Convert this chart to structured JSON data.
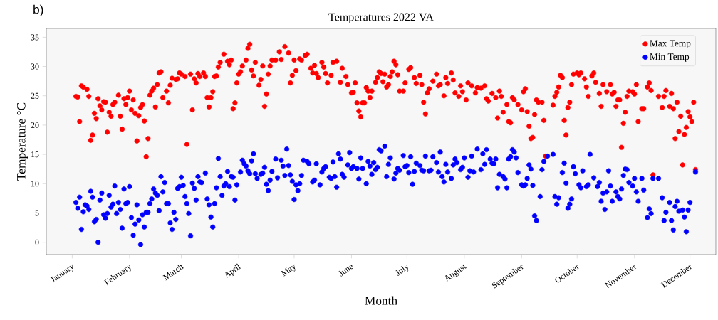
{
  "chart_data": {
    "type": "scatter",
    "title": "Temperatures 2022 VA",
    "xlabel": "Month",
    "ylabel": "Temperature °C",
    "annotations": [
      "b)"
    ],
    "xlim": [
      "2021-12-18",
      "2022-12-15"
    ],
    "ylim": [
      -2.1,
      36.5
    ],
    "xticks": [
      {
        "value": "2022-01-01",
        "label": "January"
      },
      {
        "value": "2022-02-01",
        "label": "February"
      },
      {
        "value": "2022-03-01",
        "label": "March"
      },
      {
        "value": "2022-04-01",
        "label": "April"
      },
      {
        "value": "2022-05-01",
        "label": "May"
      },
      {
        "value": "2022-06-01",
        "label": "June"
      },
      {
        "value": "2022-07-01",
        "label": "July"
      },
      {
        "value": "2022-08-01",
        "label": "August"
      },
      {
        "value": "2022-09-01",
        "label": "September"
      },
      {
        "value": "2022-10-01",
        "label": "October"
      },
      {
        "value": "2022-11-01",
        "label": "November"
      },
      {
        "value": "2022-12-01",
        "label": "December"
      }
    ],
    "yticks": [
      0,
      5,
      10,
      15,
      20,
      25,
      30,
      35
    ],
    "legend": "top right",
    "marker": "circle",
    "grid": false,
    "series": [
      {
        "name": "Max Temp",
        "color": "#ff0000",
        "x": [
          "2022-01-03",
          "2022-01-04",
          "2022-01-05",
          "2022-01-06",
          "2022-01-07",
          "2022-01-09",
          "2022-01-10",
          "2022-01-11",
          "2022-01-12",
          "2022-01-13",
          "2022-01-14",
          "2022-01-15",
          "2022-01-16",
          "2022-01-17",
          "2022-01-18",
          "2022-01-19",
          "2022-01-20",
          "2022-01-21",
          "2022-01-22",
          "2022-01-23",
          "2022-01-24",
          "2022-01-26",
          "2022-01-27",
          "2022-01-28",
          "2022-01-29",
          "2022-01-30",
          "2022-01-31",
          "2022-02-01",
          "2022-02-02",
          "2022-02-03",
          "2022-02-04",
          "2022-02-05",
          "2022-02-06",
          "2022-02-07",
          "2022-02-08",
          "2022-02-09",
          "2022-02-10",
          "2022-02-11",
          "2022-02-12",
          "2022-02-13",
          "2022-02-14",
          "2022-02-15",
          "2022-02-16",
          "2022-02-17",
          "2022-02-18",
          "2022-02-19",
          "2022-02-21",
          "2022-02-22",
          "2022-02-23",
          "2022-02-24",
          "2022-02-26",
          "2022-02-27",
          "2022-02-28",
          "2022-03-01",
          "2022-03-03",
          "2022-03-04",
          "2022-03-06",
          "2022-03-07",
          "2022-03-08",
          "2022-03-09",
          "2022-03-10",
          "2022-03-11",
          "2022-03-13",
          "2022-03-14",
          "2022-03-15",
          "2022-03-16",
          "2022-03-17",
          "2022-03-18",
          "2022-03-19",
          "2022-03-20",
          "2022-03-21",
          "2022-03-22",
          "2022-03-24",
          "2022-03-26",
          "2022-03-27",
          "2022-03-28",
          "2022-03-29",
          "2022-03-30",
          "2022-03-31",
          "2022-04-01",
          "2022-04-02",
          "2022-04-03",
          "2022-04-05",
          "2022-04-06",
          "2022-04-07",
          "2022-04-08",
          "2022-04-09",
          "2022-04-10",
          "2022-04-12",
          "2022-04-13",
          "2022-04-14",
          "2022-04-15",
          "2022-04-16",
          "2022-04-17",
          "2022-04-18",
          "2022-04-19",
          "2022-04-21",
          "2022-04-23",
          "2022-04-24",
          "2022-04-26",
          "2022-04-28",
          "2022-04-29",
          "2022-04-30",
          "2022-05-01",
          "2022-05-02",
          "2022-05-04",
          "2022-05-05",
          "2022-05-07",
          "2022-05-08",
          "2022-05-10",
          "2022-05-11",
          "2022-05-12",
          "2022-05-13",
          "2022-05-14",
          "2022-05-16",
          "2022-05-17",
          "2022-05-18",
          "2022-05-19",
          "2022-05-21",
          "2022-05-22",
          "2022-05-24",
          "2022-05-26",
          "2022-05-27",
          "2022-05-29",
          "2022-05-30",
          "2022-06-01",
          "2022-06-02",
          "2022-06-03",
          "2022-06-04",
          "2022-06-05",
          "2022-06-06",
          "2022-06-07",
          "2022-06-08",
          "2022-06-09",
          "2022-06-10",
          "2022-06-11",
          "2022-06-12",
          "2022-06-14",
          "2022-06-15",
          "2022-06-16",
          "2022-06-17",
          "2022-06-18",
          "2022-06-19",
          "2022-06-20",
          "2022-06-21",
          "2022-06-22",
          "2022-06-23",
          "2022-06-24",
          "2022-06-25",
          "2022-06-26",
          "2022-06-27",
          "2022-06-29",
          "2022-06-30",
          "2022-07-02",
          "2022-07-03",
          "2022-07-05",
          "2022-07-06",
          "2022-07-08",
          "2022-07-09",
          "2022-07-10",
          "2022-07-11",
          "2022-07-12",
          "2022-07-13",
          "2022-07-15",
          "2022-07-17",
          "2022-07-18",
          "2022-07-19",
          "2022-07-21",
          "2022-07-22",
          "2022-07-23",
          "2022-07-25",
          "2022-07-26",
          "2022-07-27",
          "2022-07-29",
          "2022-07-30",
          "2022-07-31",
          "2022-08-02",
          "2022-08-03",
          "2022-08-05",
          "2022-08-07",
          "2022-08-08",
          "2022-08-10",
          "2022-08-12",
          "2022-08-13",
          "2022-08-14",
          "2022-08-16",
          "2022-08-18",
          "2022-08-19",
          "2022-08-20",
          "2022-08-21",
          "2022-08-22",
          "2022-08-24",
          "2022-08-25",
          "2022-08-26",
          "2022-08-27",
          "2022-08-28",
          "2022-08-30",
          "2022-09-01",
          "2022-09-02",
          "2022-09-03",
          "2022-09-04",
          "2022-09-05",
          "2022-09-06",
          "2022-09-07",
          "2022-09-08",
          "2022-09-09",
          "2022-09-10",
          "2022-09-12",
          "2022-09-13",
          "2022-09-14",
          "2022-09-18",
          "2022-09-19",
          "2022-09-20",
          "2022-09-21",
          "2022-09-22",
          "2022-09-23",
          "2022-09-24",
          "2022-09-25",
          "2022-09-26",
          "2022-09-27",
          "2022-09-28",
          "2022-09-29",
          "2022-10-01",
          "2022-10-02",
          "2022-10-03",
          "2022-10-05",
          "2022-10-06",
          "2022-10-07",
          "2022-10-09",
          "2022-10-10",
          "2022-10-11",
          "2022-10-13",
          "2022-10-14",
          "2022-10-15",
          "2022-10-17",
          "2022-10-19",
          "2022-10-20",
          "2022-10-21",
          "2022-10-22",
          "2022-10-23",
          "2022-10-24",
          "2022-10-25",
          "2022-10-26",
          "2022-10-27",
          "2022-10-28",
          "2022-10-29",
          "2022-10-31",
          "2022-11-01",
          "2022-11-02",
          "2022-11-03",
          "2022-11-05",
          "2022-11-06",
          "2022-11-08",
          "2022-11-09",
          "2022-11-10",
          "2022-11-11",
          "2022-11-14",
          "2022-11-16",
          "2022-11-17",
          "2022-11-18",
          "2022-11-20",
          "2022-11-21",
          "2022-11-22",
          "2022-11-23",
          "2022-11-24",
          "2022-11-25",
          "2022-11-26",
          "2022-11-27",
          "2022-11-28",
          "2022-11-29",
          "2022-11-30",
          "2022-12-01",
          "2022-12-02",
          "2022-12-03",
          "2022-12-04"
        ],
        "values": [
          24.9,
          24.8,
          20.6,
          26.7,
          26.5,
          26.1,
          24.9,
          17.4,
          18.3,
          22.0,
          21.1,
          24.5,
          23.3,
          22.6,
          24.0,
          23.9,
          18.8,
          22.2,
          21.5,
          23.5,
          23.9,
          25.1,
          21.5,
          19.3,
          24.5,
          23.5,
          24.7,
          25.8,
          22.6,
          24.3,
          22.0,
          17.3,
          21.6,
          23.0,
          23.5,
          20.7,
          14.6,
          17.7,
          25.1,
          25.8,
          26.3,
          23.1,
          26.9,
          28.9,
          29.1,
          24.7,
          25.8,
          23.8,
          26.8,
          28.0,
          27.8,
          27.9,
          28.9,
          28.7,
          28.3,
          16.7,
          28.7,
          22.6,
          27.9,
          27.2,
          28.8,
          28.3,
          28.9,
          28.3,
          24.7,
          23.1,
          24.7,
          25.7,
          28.3,
          28.4,
          29.9,
          30.7,
          32.1,
          30.9,
          30.3,
          31.1,
          22.8,
          23.8,
          27.2,
          28.7,
          29.1,
          30.1,
          31.1,
          33.1,
          33.8,
          29.4,
          28.4,
          30.7,
          26.8,
          27.8,
          30.1,
          23.2,
          25.3,
          28.7,
          30.1,
          31.1,
          31.1,
          32.5,
          31.2,
          33.4,
          32.3,
          27.2,
          28.5,
          31.1,
          29.3,
          31.3,
          31.1,
          31.9,
          32.1,
          29.7,
          28.9,
          30.2,
          28.8,
          28.1,
          30.7,
          29.9,
          28.8,
          27.2,
          28.5,
          30.7,
          30.9,
          27.3,
          29.7,
          28.3,
          26.9,
          25.5,
          25.6,
          27.2,
          23.8,
          22.4,
          21.4,
          23.8,
          23.8,
          26.4,
          25.8,
          24.7,
          25.8,
          27.3,
          28.1,
          29.1,
          28.8,
          27.4,
          28.7,
          26.5,
          26.9,
          28.3,
          29.1,
          30.9,
          30.3,
          28.6,
          25.8,
          25.8,
          27.2,
          29.5,
          29.8,
          28.1,
          27.1,
          28.5,
          26.9,
          23.9,
          21.9,
          25.5,
          26.2,
          27.5,
          28.7,
          26.7,
          26.9,
          25.0,
          28.1,
          27.1,
          28.9,
          27.7,
          25.5,
          24.9,
          26.7,
          25.7,
          24.3,
          27.2,
          26.7,
          25.5,
          26.4,
          26.3,
          26.7,
          24.5,
          24.1,
          25.4,
          24.7,
          21.2,
          25.8,
          24.9,
          22.2,
          23.5,
          20.6,
          20.4,
          24.7,
          24.3,
          23.5,
          22.6,
          25.7,
          26.2,
          22.3,
          19.8,
          17.7,
          17.9,
          21.8,
          24.3,
          23.9,
          23.9,
          20.8,
          14.7,
          23.4,
          24.9,
          25.6,
          26.5,
          28.5,
          28.1,
          20.8,
          18.3,
          23.0,
          23.9,
          26.9,
          28.7,
          28.9,
          28.6,
          28.9,
          27.9,
          26.5,
          24.9,
          28.4,
          28.9,
          27.3,
          25.4,
          23.2,
          26.9,
          25.7,
          26.9,
          25.3,
          25.6,
          23.2,
          24.3,
          24.3,
          16.2,
          20.3,
          22.2,
          24.9,
          25.8,
          25.7,
          25.3,
          26.9,
          20.6,
          22.8,
          22.8,
          26.5,
          27.2,
          25.9,
          11.5,
          24.9,
          23.0,
          24.9,
          25.9,
          23.2,
          25.4,
          22.8,
          17.7,
          23.9,
          18.9,
          21.5,
          13.2,
          18.4,
          19.6,
          22.3,
          21.4,
          20.6,
          23.9,
          12.4
        ]
      },
      {
        "name": "Min Temp",
        "color": "#0000ff",
        "x": [
          "2022-01-03",
          "2022-01-04",
          "2022-01-05",
          "2022-01-06",
          "2022-01-07",
          "2022-01-08",
          "2022-01-09",
          "2022-01-10",
          "2022-01-11",
          "2022-01-12",
          "2022-01-13",
          "2022-01-14",
          "2022-01-15",
          "2022-01-16",
          "2022-01-17",
          "2022-01-18",
          "2022-01-19",
          "2022-01-20",
          "2022-01-21",
          "2022-01-22",
          "2022-01-23",
          "2022-01-24",
          "2022-01-25",
          "2022-01-26",
          "2022-01-27",
          "2022-01-28",
          "2022-01-29",
          "2022-01-30",
          "2022-01-31",
          "2022-02-01",
          "2022-02-02",
          "2022-02-03",
          "2022-02-04",
          "2022-02-05",
          "2022-02-06",
          "2022-02-07",
          "2022-02-08",
          "2022-02-09",
          "2022-02-10",
          "2022-02-11",
          "2022-02-12",
          "2022-02-13",
          "2022-02-14",
          "2022-02-15",
          "2022-02-16",
          "2022-02-17",
          "2022-02-18",
          "2022-02-19",
          "2022-02-20",
          "2022-02-21",
          "2022-02-22",
          "2022-02-23",
          "2022-02-24",
          "2022-02-25",
          "2022-02-26",
          "2022-02-27",
          "2022-02-28",
          "2022-03-01",
          "2022-03-02",
          "2022-03-03",
          "2022-03-04",
          "2022-03-05",
          "2022-03-06",
          "2022-03-07",
          "2022-03-08",
          "2022-03-09",
          "2022-03-10",
          "2022-03-11",
          "2022-03-12",
          "2022-03-14",
          "2022-03-15",
          "2022-03-16",
          "2022-03-17",
          "2022-03-18",
          "2022-03-19",
          "2022-03-20",
          "2022-03-21",
          "2022-03-22",
          "2022-03-23",
          "2022-03-24",
          "2022-03-25",
          "2022-03-26",
          "2022-03-27",
          "2022-03-28",
          "2022-03-29",
          "2022-03-30",
          "2022-03-31",
          "2022-04-02",
          "2022-04-03",
          "2022-04-04",
          "2022-04-05",
          "2022-04-06",
          "2022-04-07",
          "2022-04-08",
          "2022-04-09",
          "2022-04-10",
          "2022-04-11",
          "2022-04-13",
          "2022-04-14",
          "2022-04-15",
          "2022-04-16",
          "2022-04-17",
          "2022-04-18",
          "2022-04-19",
          "2022-04-21",
          "2022-04-22",
          "2022-04-24",
          "2022-04-25",
          "2022-04-26",
          "2022-04-27",
          "2022-04-28",
          "2022-04-29",
          "2022-04-30",
          "2022-05-01",
          "2022-05-02",
          "2022-05-03",
          "2022-05-04",
          "2022-05-05",
          "2022-05-06",
          "2022-05-08",
          "2022-05-09",
          "2022-05-11",
          "2022-05-12",
          "2022-05-13",
          "2022-05-15",
          "2022-05-16",
          "2022-05-17",
          "2022-05-18",
          "2022-05-20",
          "2022-05-21",
          "2022-05-22",
          "2022-05-23",
          "2022-05-24",
          "2022-05-25",
          "2022-05-26",
          "2022-05-27",
          "2022-05-28",
          "2022-05-30",
          "2022-05-31",
          "2022-06-01",
          "2022-06-02",
          "2022-06-04",
          "2022-06-05",
          "2022-06-06",
          "2022-06-07",
          "2022-06-09",
          "2022-06-10",
          "2022-06-11",
          "2022-06-12",
          "2022-06-13",
          "2022-06-14",
          "2022-06-15",
          "2022-06-16",
          "2022-06-17",
          "2022-06-19",
          "2022-06-20",
          "2022-06-21",
          "2022-06-22",
          "2022-06-24",
          "2022-06-25",
          "2022-06-26",
          "2022-06-27",
          "2022-06-29",
          "2022-06-30",
          "2022-07-01",
          "2022-07-02",
          "2022-07-03",
          "2022-07-04",
          "2022-07-05",
          "2022-07-06",
          "2022-07-08",
          "2022-07-09",
          "2022-07-10",
          "2022-07-11",
          "2022-07-13",
          "2022-07-14",
          "2022-07-15",
          "2022-07-17",
          "2022-07-18",
          "2022-07-19",
          "2022-07-20",
          "2022-07-21",
          "2022-07-22",
          "2022-07-23",
          "2022-07-25",
          "2022-07-26",
          "2022-07-27",
          "2022-07-28",
          "2022-07-30",
          "2022-07-31",
          "2022-08-01",
          "2022-08-03",
          "2022-08-04",
          "2022-08-05",
          "2022-08-06",
          "2022-08-08",
          "2022-08-10",
          "2022-08-11",
          "2022-08-12",
          "2022-08-13",
          "2022-08-15",
          "2022-08-16",
          "2022-08-17",
          "2022-08-18",
          "2022-08-19",
          "2022-08-20",
          "2022-08-22",
          "2022-08-23",
          "2022-08-24",
          "2022-08-25",
          "2022-08-26",
          "2022-08-27",
          "2022-08-28",
          "2022-08-29",
          "2022-08-30",
          "2022-09-01",
          "2022-09-02",
          "2022-09-03",
          "2022-09-04",
          "2022-09-05",
          "2022-09-06",
          "2022-09-07",
          "2022-09-08",
          "2022-09-09",
          "2022-09-11",
          "2022-09-12",
          "2022-09-13",
          "2022-09-15",
          "2022-09-18",
          "2022-09-19",
          "2022-09-20",
          "2022-09-21",
          "2022-09-23",
          "2022-09-24",
          "2022-09-25",
          "2022-09-26",
          "2022-09-27",
          "2022-09-28",
          "2022-09-29",
          "2022-09-30",
          "2022-10-02",
          "2022-10-03",
          "2022-10-04",
          "2022-10-06",
          "2022-10-07",
          "2022-10-08",
          "2022-10-10",
          "2022-10-12",
          "2022-10-13",
          "2022-10-14",
          "2022-10-15",
          "2022-10-16",
          "2022-10-17",
          "2022-10-18",
          "2022-10-19",
          "2022-10-20",
          "2022-10-22",
          "2022-10-23",
          "2022-10-24",
          "2022-10-25",
          "2022-10-26",
          "2022-10-27",
          "2022-10-28",
          "2022-10-29",
          "2022-10-31",
          "2022-11-01",
          "2022-11-02",
          "2022-11-03",
          "2022-11-05",
          "2022-11-06",
          "2022-11-08",
          "2022-11-09",
          "2022-11-10",
          "2022-11-11",
          "2022-11-14",
          "2022-11-16",
          "2022-11-17",
          "2022-11-18",
          "2022-11-20",
          "2022-11-21",
          "2022-11-22",
          "2022-11-23",
          "2022-11-24",
          "2022-11-25",
          "2022-11-27",
          "2022-11-28",
          "2022-11-29",
          "2022-11-30",
          "2022-12-01",
          "2022-12-04"
        ],
        "values": [
          6.8,
          5.8,
          7.7,
          2.2,
          5.2,
          6.4,
          6.2,
          5.6,
          8.7,
          7.7,
          3.5,
          3.9,
          0.0,
          7.2,
          8.4,
          4.7,
          4.1,
          4.9,
          8.0,
          6.0,
          6.5,
          9.6,
          4.9,
          6.8,
          5.6,
          2.4,
          9.1,
          6.6,
          6.8,
          9.5,
          4.2,
          1.2,
          3.1,
          6.4,
          3.8,
          -0.4,
          4.7,
          2.6,
          5.1,
          5.1,
          6.6,
          7.4,
          9.1,
          8.4,
          8.0,
          5.4,
          11.2,
          8.6,
          10.2,
          6.6,
          6.6,
          3.3,
          2.2,
          5.1,
          3.9,
          9.2,
          9.5,
          11.1,
          9.7,
          7.8,
          6.6,
          4.9,
          1.1,
          10.1,
          9.2,
          7.2,
          11.2,
          10.3,
          10.2,
          11.8,
          7.4,
          6.4,
          4.3,
          2.6,
          6.6,
          9.3,
          14.3,
          11.2,
          8.0,
          9.6,
          10.0,
          12.1,
          9.5,
          11.2,
          11.1,
          7.2,
          9.8,
          12.0,
          14.0,
          13.4,
          13.0,
          12.2,
          11.7,
          13.9,
          15.1,
          11.7,
          10.9,
          11.6,
          11.8,
          12.8,
          9.9,
          8.8,
          10.6,
          12.1,
          14.2,
          11.0,
          14.0,
          13.0,
          11.4,
          15.9,
          13.1,
          11.5,
          10.4,
          7.3,
          9.8,
          8.8,
          10.0,
          11.4,
          14.0,
          13.8,
          13.4,
          10.3,
          10.6,
          13.4,
          9.8,
          12.0,
          12.6,
          12.9,
          11.1,
          10.9,
          13.7,
          11.2,
          9.4,
          15.1,
          14.2,
          11.6,
          11.1,
          13.2,
          15.3,
          12.6,
          12.9,
          12.6,
          10.8,
          14.4,
          12.6,
          10.0,
          13.8,
          13.0,
          11.6,
          13.6,
          12.4,
          12.8,
          15.8,
          15.6,
          16.4,
          11.2,
          13.3,
          14.4,
          10.8,
          11.8,
          12.6,
          12.3,
          14.8,
          12.9,
          13.1,
          11.9,
          14.6,
          9.9,
          12.1,
          13.5,
          13.1,
          12.3,
          12.2,
          14.7,
          12.2,
          12.3,
          14.6,
          13.6,
          12.0,
          15.4,
          11.2,
          10.3,
          13.3,
          12.0,
          10.9,
          13.2,
          14.2,
          13.6,
          12.4,
          12.8,
          14.4,
          11.1,
          12.2,
          14.7,
          12.0,
          15.9,
          12.4,
          15.1,
          13.3,
          15.8,
          14.2,
          13.5,
          13.4,
          14.2,
          9.3,
          11.6,
          11.2,
          10.8,
          9.3,
          14.2,
          14.6,
          15.8,
          15.4,
          14.4,
          11.9,
          9.8,
          9.6,
          9.8,
          10.9,
          13.2,
          12.5,
          9.7,
          4.5,
          3.7,
          7.8,
          12.4,
          13.8,
          14.7,
          15.0,
          7.8,
          6.5,
          7.6,
          11.9,
          13.5,
          10.1,
          5.8,
          6.5,
          7.4,
          12.9,
          11.7,
          9.8,
          9.3,
          12.2,
          9.5,
          9.8,
          15.0,
          11.0,
          9.5,
          10.2,
          7.0,
          8.4,
          5.6,
          8.6,
          12.2,
          9.6,
          7.0,
          8.6,
          7.8,
          7.4,
          9.1,
          11.4,
          12.5,
          12.4,
          10.2,
          9.6,
          10.9,
          8.6,
          7.0,
          10.9,
          8.9,
          4.2,
          5.7,
          4.9,
          10.9,
          10.9,
          7.6,
          3.7,
          5.1,
          6.8,
          3.7,
          2.1,
          6.1,
          7.0,
          5.3,
          5.5,
          4.3,
          1.8,
          5.5,
          6.8,
          12.0
        ]
      }
    ]
  }
}
